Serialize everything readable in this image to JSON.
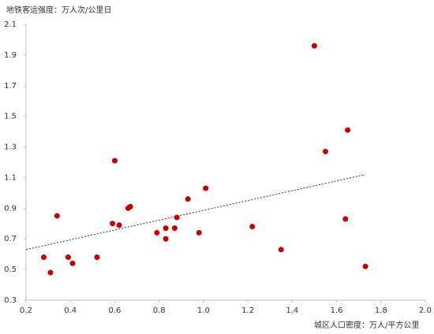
{
  "chart_data": {
    "type": "scatter",
    "y_label": "地铁客运强度：万人次/公里日",
    "x_label": "城区人口密度：万人/平方公里",
    "color": "#c00000",
    "x": [
      0.28,
      0.31,
      0.34,
      0.39,
      0.41,
      0.52,
      0.6,
      0.59,
      0.62,
      0.66,
      0.67,
      0.79,
      0.83,
      0.83,
      0.87,
      0.88,
      0.93,
      0.98,
      1.01,
      1.22,
      1.35,
      1.5,
      1.55,
      1.64,
      1.65,
      1.73
    ],
    "values": [
      0.58,
      0.48,
      0.85,
      0.58,
      0.54,
      0.58,
      1.21,
      0.8,
      0.79,
      0.9,
      0.91,
      0.74,
      0.77,
      0.7,
      0.77,
      0.84,
      0.96,
      0.74,
      1.03,
      0.78,
      0.63,
      1.96,
      1.27,
      0.83,
      1.41,
      0.52
    ],
    "trendline": {
      "x": [
        0.2,
        1.73
      ],
      "y": [
        0.63,
        1.12
      ]
    },
    "xlim": [
      0.2,
      2
    ],
    "ylim": [
      0.3,
      2.1
    ],
    "xticks": [
      0.2,
      0.4,
      0.6,
      0.8,
      {
        "value": 1,
        "label": "1.0"
      },
      1.2,
      1.4,
      1.6,
      1.8,
      {
        "value": 2,
        "label": "2.0"
      }
    ],
    "yticks": [
      0.3,
      0.5,
      0.7,
      0.9,
      1.1,
      1.3,
      1.5,
      1.7,
      1.9,
      2.1
    ]
  }
}
